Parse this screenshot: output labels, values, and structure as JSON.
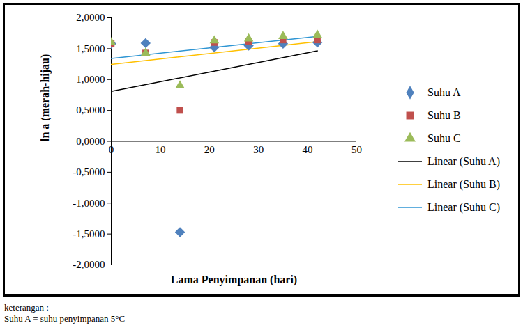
{
  "chart_data": {
    "type": "scatter",
    "x_label": "Lama Penyimpanan (hari)",
    "y_label": "ln a (merah-hijau)",
    "x": [
      0,
      7,
      14,
      21,
      28,
      35,
      42
    ],
    "series": [
      {
        "name": "Suhu A",
        "color": "#4f81bd",
        "marker": "diamond",
        "values": [
          1.58,
          1.59,
          -1.47,
          1.52,
          1.55,
          1.58,
          1.6
        ],
        "trendline": {
          "type": "linear",
          "name": "Linear (Suhu A)",
          "color": "#000000"
        }
      },
      {
        "name": "Suhu B",
        "color": "#c0504d",
        "marker": "square",
        "values": [
          1.58,
          1.43,
          0.5,
          1.6,
          1.62,
          1.64,
          1.64
        ],
        "trendline": {
          "type": "linear",
          "name": "Linear (Suhu B)",
          "color": "#ffc000"
        }
      },
      {
        "name": "Suhu C",
        "color": "#9bbb59",
        "marker": "triangle",
        "values": [
          1.6,
          1.43,
          0.9,
          1.63,
          1.66,
          1.7,
          1.72
        ],
        "trendline": {
          "type": "linear",
          "name": "Linear (Suhu C)",
          "color": "#2e95d3"
        }
      }
    ],
    "xlim": [
      0,
      50
    ],
    "xticks": [
      0,
      10,
      20,
      30,
      40,
      50
    ],
    "ylim": [
      -2,
      2
    ],
    "yticks": [
      {
        "value": -2,
        "label": "-2,0000"
      },
      {
        "value": -1.5,
        "label": "-1,5000"
      },
      {
        "value": -1,
        "label": "-1,0000"
      },
      {
        "value": -0.5,
        "label": "-0,5000"
      },
      {
        "value": 0,
        "label": "0,0000"
      },
      {
        "value": 0.5,
        "label": "0,5000"
      },
      {
        "value": 1,
        "label": "1,0000"
      },
      {
        "value": 1.5,
        "label": "1,5000"
      },
      {
        "value": 2,
        "label": "2,0000"
      }
    ],
    "legend": "right",
    "notes": [
      "keterangan :",
      "Suhu A = suhu penyimpanan 5°C"
    ]
  }
}
